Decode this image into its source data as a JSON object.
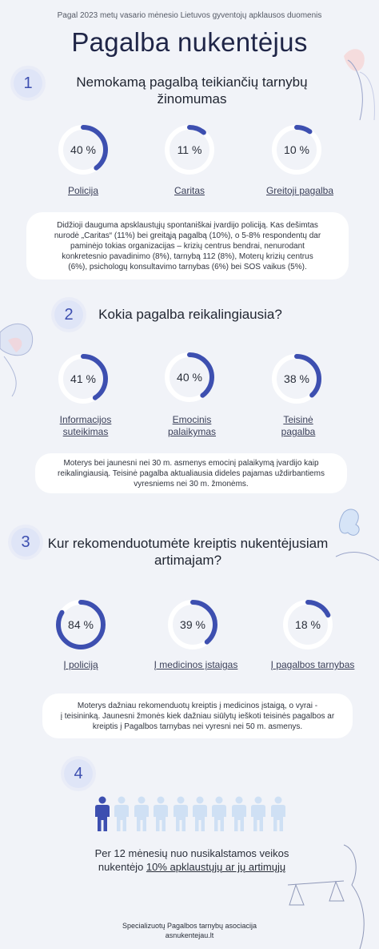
{
  "header": {
    "subtitle": "Pagal 2023 metų vasario mėnesio Lietuvos gyventojų apklausos duomenis",
    "title": "Pagalba nukentėjus"
  },
  "colors": {
    "accent": "#3d4fb0",
    "track": "#ffffff",
    "number_bg": "#dfe5f7",
    "person_light": "#cfe0f4"
  },
  "sections": [
    {
      "number": "1",
      "heading_line1": "Nemokamą pagalbą teikiančių tarnybų",
      "heading_line2": "žinomumas",
      "items": [
        {
          "percent": 40,
          "percent_text": "40 %",
          "label_line1": "Policija",
          "label_line2": ""
        },
        {
          "percent": 11,
          "percent_text": "11 %",
          "label_line1": "Caritas",
          "label_line2": ""
        },
        {
          "percent": 10,
          "percent_text": "10 %",
          "label_line1": "Greitoji pagalba",
          "label_line2": ""
        }
      ],
      "note_lines": [
        "Didžioji dauguma apskl­austųjų spontaniškai įvardijo policiją. Kas dešimtas",
        "nurodė „Caritas“ (11%) bei greitąją pagalbą (10%), o 5-8% respondentų dar",
        "paminėjo tokias organizacijas – krizių centrus bendrai, nenurodant",
        "konkretesnio pavadinimo (8%), tarnybą 112 (8%), Moterų krizių centrus",
        "(6%), psichologų konsultavimo tarnybas (6%) bei SOS vaikus (5%)."
      ]
    },
    {
      "number": "2",
      "heading_line1": "Kokia pagalba reikalingiausia?",
      "heading_line2": "",
      "items": [
        {
          "percent": 41,
          "percent_text": "41 %",
          "label_line1": "Informacijos",
          "label_line2": "suteikimas"
        },
        {
          "percent": 40,
          "percent_text": "40 %",
          "label_line1": "Emocinis",
          "label_line2": "palaikymas"
        },
        {
          "percent": 38,
          "percent_text": "38 %",
          "label_line1": "Teisinė",
          "label_line2": "pagalba"
        }
      ],
      "note_lines": [
        "Moterys bei jaunesni nei 30 m. asmenys emocinį palaikymą įvardijo kaip",
        "reikalingiausią. Teisinė pagalba aktualiausia dideles pajamas uždirbantiems",
        "vyresniems nei 30 m. žmonėms."
      ]
    },
    {
      "number": "3",
      "heading_line1": "Kur rekomenduotumėte kreiptis nukentėjusiam",
      "heading_line2": "artimajam?",
      "items": [
        {
          "percent": 84,
          "percent_text": "84 %",
          "label_line1": "Į policiją",
          "label_line2": ""
        },
        {
          "percent": 39,
          "percent_text": "39 %",
          "label_line1": "Į medicinos įstaigas",
          "label_line2": ""
        },
        {
          "percent": 18,
          "percent_text": "18 %",
          "label_line1": "Į pagalbos tarnybas",
          "label_line2": ""
        }
      ],
      "note_lines": [
        "Moterys dažniau rekomenduotų kreiptis į medicinos įstaigą, o vyrai -",
        "į teisininką. Jaunesni žmonės kiek dažniau siūlytų ieškoti teisinės pagalbos ar",
        "kreiptis į Pagalbos tarnybas nei vyresni nei 50 m. asmenys."
      ]
    },
    {
      "number": "4",
      "people_total": 10,
      "people_highlighted": 1,
      "text_line1": "Per 12 mėnesių nuo nusikalstamos veikos",
      "text_line2_prefix": "nukentėjo ",
      "text_line2_highlight": "10% apklaustųjų ar jų artimųjų"
    }
  ],
  "footer": {
    "line1": "Specializuotų Pagalbos tarnybų asociacija",
    "line2": "asnukentejau.lt"
  }
}
